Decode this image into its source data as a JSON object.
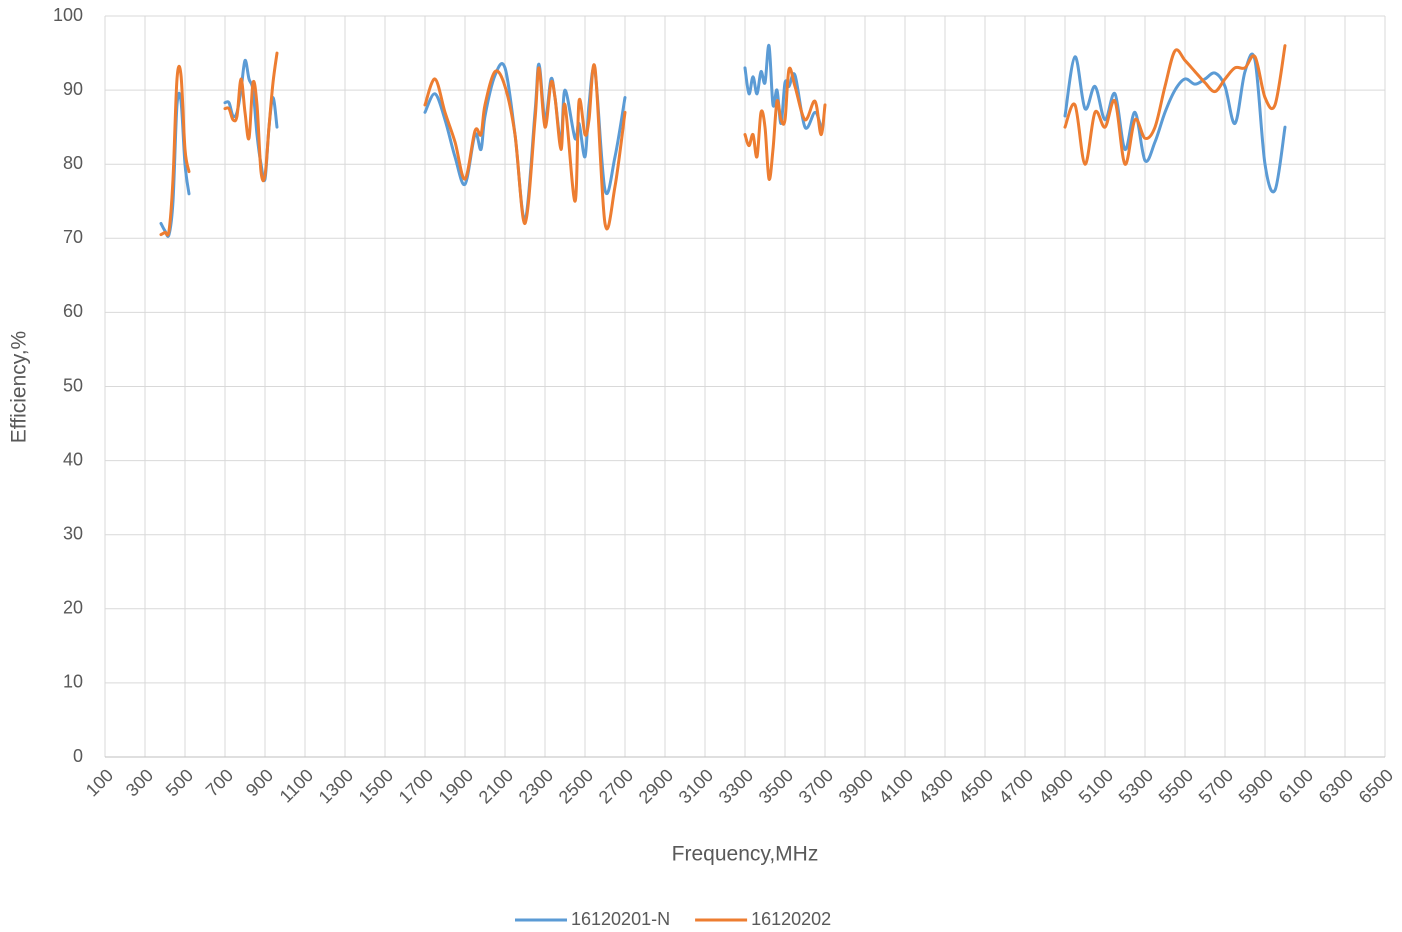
{
  "chart_data": {
    "type": "line",
    "x_label": "Frequency,MHz",
    "y_label": "Efficiency,%",
    "x": [
      380,
      400,
      420,
      440,
      460,
      480,
      500,
      520,
      600,
      700,
      720,
      740,
      760,
      780,
      800,
      820,
      840,
      860,
      880,
      900,
      920,
      940,
      960,
      1300,
      1700,
      1750,
      1800,
      1850,
      1900,
      1950,
      1980,
      2000,
      2050,
      2100,
      2150,
      2200,
      2250,
      2270,
      2300,
      2330,
      2350,
      2380,
      2400,
      2450,
      2470,
      2500,
      2520,
      2550,
      2600,
      2650,
      2700,
      3000,
      3300,
      3320,
      3340,
      3360,
      3380,
      3400,
      3420,
      3440,
      3460,
      3480,
      3500,
      3520,
      3550,
      3600,
      3650,
      3680,
      3700,
      4200,
      4900,
      4950,
      5000,
      5050,
      5100,
      5150,
      5200,
      5250,
      5300,
      5350,
      5400,
      5450,
      5500,
      5550,
      5600,
      5650,
      5700,
      5750,
      5800,
      5850,
      5900,
      5950,
      6000
    ],
    "series": [
      {
        "name": "16120201-N",
        "color": "#5b9bd5",
        "values": [
          72,
          71,
          70.5,
          75,
          88,
          88.5,
          80,
          76,
          null,
          88.3,
          88.3,
          86.5,
          87,
          90,
          94,
          91.5,
          90,
          84,
          80,
          78,
          85,
          89,
          85,
          null,
          87,
          89.5,
          86,
          81,
          77.3,
          84,
          82,
          86.5,
          92,
          93,
          84,
          72.5,
          87,
          93.5,
          86,
          91.5,
          89,
          83,
          90,
          83.5,
          85.5,
          81,
          88,
          92.5,
          76.5,
          81,
          89,
          null,
          93,
          89.5,
          91.8,
          89.5,
          92.5,
          91,
          96,
          88,
          90,
          85.5,
          91,
          90.5,
          92,
          85,
          87,
          85,
          null,
          null,
          86.5,
          94.5,
          87.5,
          90.5,
          86,
          89.5,
          82,
          87,
          80.5,
          83,
          87,
          90,
          91.5,
          90.8,
          91.5,
          92.3,
          90.5,
          85.5,
          92.5,
          94,
          80,
          76.5,
          85
        ]
      },
      {
        "name": "16120202",
        "color": "#ed7d31",
        "values": [
          70.5,
          70.8,
          71,
          78,
          91.5,
          92,
          82,
          79,
          null,
          87.5,
          87.5,
          86,
          86.5,
          91.5,
          87,
          83.5,
          91,
          88,
          79,
          78.5,
          85,
          91,
          95,
          null,
          88,
          91.5,
          87,
          83,
          78,
          84.5,
          84,
          88,
          92.5,
          90.5,
          84,
          72,
          86,
          93,
          85,
          91,
          89,
          82,
          88,
          75,
          88.5,
          84,
          86,
          93,
          72,
          77,
          87,
          null,
          84,
          82.5,
          84,
          81,
          87,
          85,
          78,
          82,
          88.5,
          86,
          86,
          92.8,
          90.5,
          86,
          88.5,
          84,
          88,
          null,
          85,
          88,
          80,
          87,
          85,
          88.5,
          80,
          86,
          83.5,
          85,
          90.5,
          95.3,
          94,
          92.5,
          91,
          89.8,
          91.5,
          93,
          93,
          94.5,
          89,
          88,
          96
        ]
      }
    ],
    "xlim": [
      100,
      6500
    ],
    "xticks": [
      100,
      300,
      500,
      700,
      900,
      1100,
      1300,
      1500,
      1700,
      1900,
      2100,
      2300,
      2500,
      2700,
      2900,
      3100,
      3300,
      3500,
      3700,
      3900,
      4100,
      4300,
      4500,
      4700,
      4900,
      5100,
      5300,
      5500,
      5700,
      5900,
      6100,
      6300,
      6500
    ],
    "ylim": [
      0,
      100
    ],
    "yticks": [
      0,
      10,
      20,
      30,
      40,
      50,
      60,
      70,
      80,
      90,
      100
    ],
    "grid": true,
    "legend": "bottom"
  }
}
